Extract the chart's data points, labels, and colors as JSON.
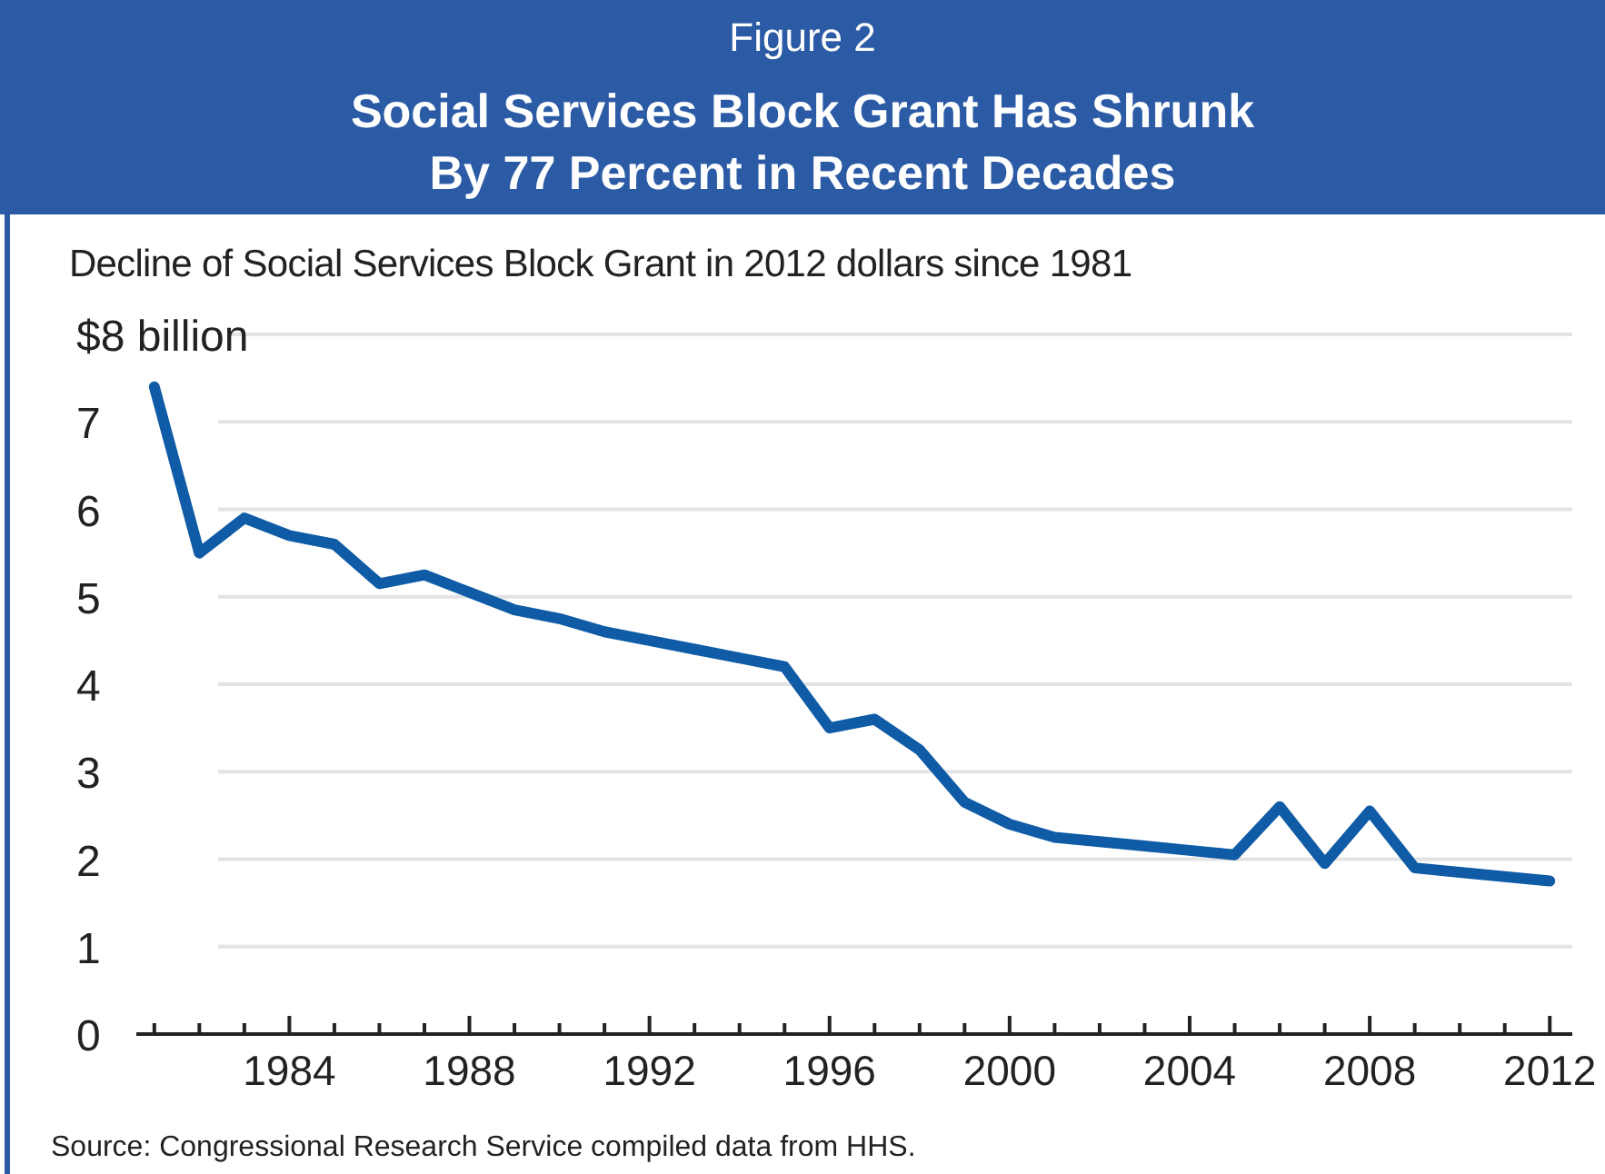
{
  "chart_data": {
    "type": "line",
    "title": "Social Services Block Grant Has Shrunk By 77 Percent in Recent Decades",
    "subtitle": "Decline of Social Services Block Grant in 2012 dollars since 1981",
    "annotations": [
      "Figure 2",
      "Source: Congressional Research Service compiled data from HHS."
    ],
    "x": [
      1981,
      1982,
      1983,
      1984,
      1985,
      1986,
      1987,
      1988,
      1989,
      1990,
      1991,
      1992,
      1993,
      1994,
      1995,
      1996,
      1997,
      1998,
      1999,
      2000,
      2001,
      2002,
      2003,
      2004,
      2005,
      2006,
      2007,
      2008,
      2009,
      2010,
      2011,
      2012
    ],
    "series": [
      {
        "color": "#0f5ba6",
        "values": [
          7.4,
          5.5,
          5.9,
          5.7,
          5.6,
          5.15,
          5.25,
          5.05,
          4.85,
          4.75,
          4.6,
          4.5,
          4.4,
          4.3,
          4.2,
          3.5,
          3.6,
          3.25,
          2.65,
          2.4,
          2.25,
          2.2,
          2.15,
          2.1,
          2.05,
          2.6,
          1.95,
          2.55,
          1.9,
          1.85,
          1.8,
          1.75
        ]
      }
    ],
    "xlim": [
      1980.6,
      2012.5
    ],
    "xticks": [
      {
        "value": 1981,
        "label": null
      },
      {
        "value": 1982,
        "label": null
      },
      {
        "value": 1983,
        "label": null
      },
      1984,
      {
        "value": 1985,
        "label": null
      },
      {
        "value": 1986,
        "label": null
      },
      {
        "value": 1987,
        "label": null
      },
      1988,
      {
        "value": 1989,
        "label": null
      },
      {
        "value": 1990,
        "label": null
      },
      {
        "value": 1991,
        "label": null
      },
      1992,
      {
        "value": 1993,
        "label": null
      },
      {
        "value": 1994,
        "label": null
      },
      {
        "value": 1995,
        "label": null
      },
      1996,
      {
        "value": 1997,
        "label": null
      },
      {
        "value": 1998,
        "label": null
      },
      {
        "value": 1999,
        "label": null
      },
      2000,
      {
        "value": 2001,
        "label": null
      },
      {
        "value": 2002,
        "label": null
      },
      {
        "value": 2003,
        "label": null
      },
      2004,
      {
        "value": 2005,
        "label": null
      },
      {
        "value": 2006,
        "label": null
      },
      {
        "value": 2007,
        "label": null
      },
      2008,
      {
        "value": 2009,
        "label": null
      },
      {
        "value": 2010,
        "label": null
      },
      {
        "value": 2011,
        "label": null
      },
      2012
    ],
    "ylim": [
      0,
      8
    ],
    "yticks": [
      0,
      1,
      2,
      3,
      4,
      5,
      6,
      7,
      {
        "value": 8,
        "label": "$8 billion"
      }
    ],
    "grid": "y",
    "marker": "none",
    "line_style": "solid"
  }
}
